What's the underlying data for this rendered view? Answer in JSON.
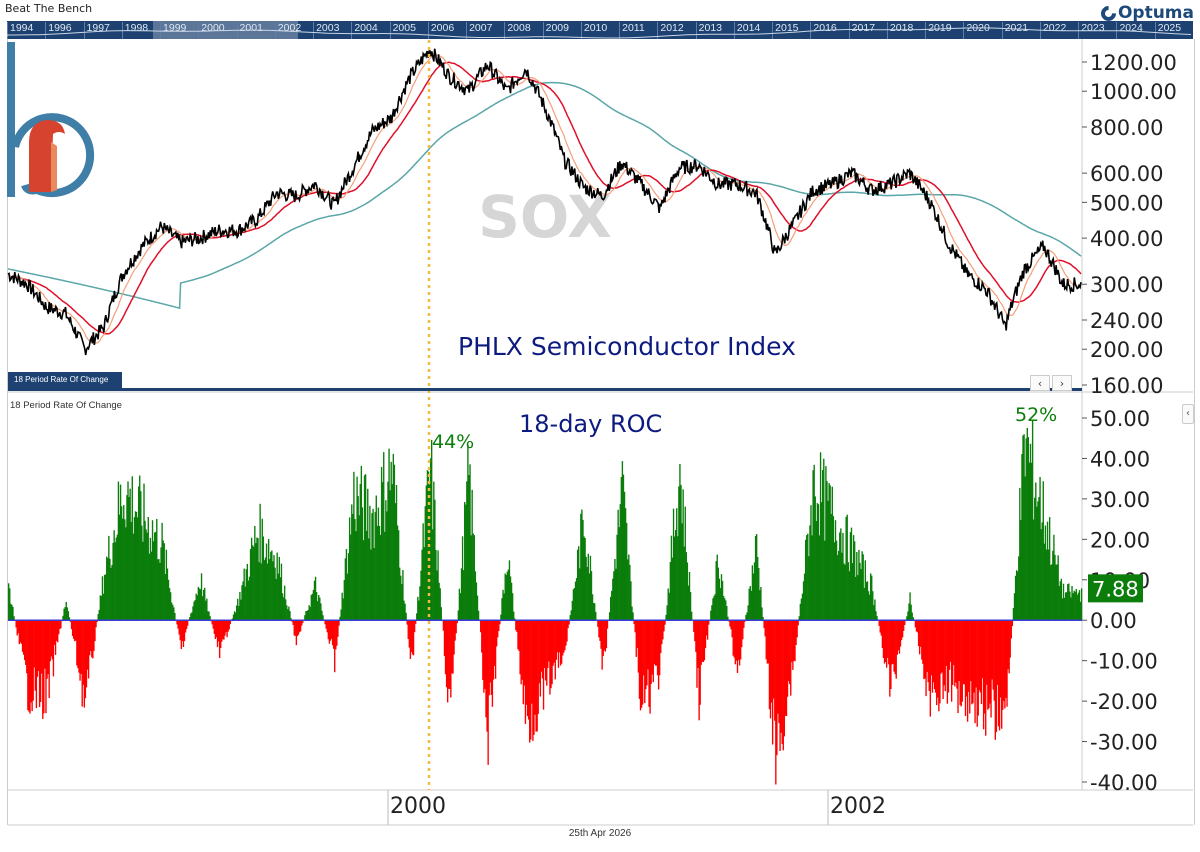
{
  "app": {
    "title": "Beat The Bench",
    "brand": "Optuma"
  },
  "navigator": {
    "years": [
      "1994",
      "1996",
      "1997",
      "1998",
      "1999",
      "2000",
      "2001",
      "2002",
      "2003",
      "2004",
      "2005",
      "2006",
      "2007",
      "2008",
      "2009",
      "2010",
      "2011",
      "2012",
      "2013",
      "2014",
      "2015",
      "2016",
      "2017",
      "2018",
      "2019",
      "2020",
      "2021",
      "2022",
      "2023",
      "2024",
      "2025"
    ]
  },
  "price_panel": {
    "watermark": "SOX",
    "annotation": "PHLX Semiconductor Index",
    "tab_label": "18 Period Rate Of Change",
    "nav_prev": "‹",
    "nav_next": "›"
  },
  "roc_panel": {
    "label": "18 Period Rate Of Change",
    "title": "18-day ROC",
    "peak_label_1": "44%",
    "peak_label_2": "52%",
    "current_value": "7.88",
    "collapse": "‹"
  },
  "footer": {
    "date": "25th Apr 2026"
  },
  "colors": {
    "price": "#000000",
    "ma_fast": "#f4a07a",
    "ma_mid": "#e0102a",
    "ma_slow": "#5aa6a8",
    "roc_pos": "#0a7d0a",
    "roc_neg": "#ff0000",
    "zero_line": "#3b3bd6",
    "navy": "#1d4272",
    "marker": "#f5b942",
    "annotation": "#0d1a80"
  },
  "chart_data": [
    {
      "type": "line",
      "title": "PHLX Semiconductor Index (SOX)",
      "scale": "log",
      "ylim": [
        160,
        1400
      ],
      "y_ticks": [
        1200,
        1000,
        800,
        600,
        500,
        400,
        300,
        240,
        200,
        160
      ],
      "x_ticks": [
        "2000",
        "2002"
      ],
      "x_range": [
        "1998-05",
        "2002-12"
      ],
      "series": [
        {
          "name": "SOX close",
          "x": [
            "1998-05",
            "1998-06",
            "1998-07",
            "1998-08",
            "1998-09",
            "1998-10",
            "1998-11",
            "1998-12",
            "1999-01",
            "1999-02",
            "1999-03",
            "1999-04",
            "1999-05",
            "1999-06",
            "1999-07",
            "1999-08",
            "1999-09",
            "1999-10",
            "1999-11",
            "1999-12",
            "2000-01",
            "2000-02",
            "2000-03",
            "2000-04",
            "2000-05",
            "2000-06",
            "2000-07",
            "2000-08",
            "2000-09",
            "2000-10",
            "2000-11",
            "2000-12",
            "2001-01",
            "2001-02",
            "2001-03",
            "2001-04",
            "2001-05",
            "2001-06",
            "2001-07",
            "2001-08",
            "2001-09",
            "2001-10",
            "2001-11",
            "2001-12",
            "2002-01",
            "2002-02",
            "2002-03",
            "2002-04",
            "2002-05",
            "2002-06",
            "2002-07",
            "2002-08",
            "2002-09",
            "2002-10",
            "2002-11",
            "2002-12"
          ],
          "values": [
            320,
            300,
            260,
            250,
            200,
            230,
            320,
            380,
            430,
            390,
            400,
            420,
            420,
            450,
            530,
            520,
            560,
            490,
            620,
            780,
            850,
            1100,
            1300,
            1100,
            1000,
            1180,
            1000,
            1150,
            900,
            650,
            550,
            520,
            640,
            560,
            480,
            620,
            630,
            560,
            560,
            530,
            360,
            440,
            540,
            560,
            600,
            540,
            560,
            600,
            510,
            390,
            320,
            290,
            230,
            330,
            380,
            300
          ]
        },
        {
          "name": "Fast MA",
          "note": "orange, tracks price closely"
        },
        {
          "name": "Mid MA",
          "note": "red, smoother"
        },
        {
          "name": "Slow MA",
          "note": "teal, long-term; peak ~1050 mid-2000"
        }
      ],
      "annotations": [
        {
          "text": "PHLX Semiconductor Index"
        },
        {
          "text": "SOX",
          "type": "watermark"
        },
        {
          "type": "vline",
          "x": "2000-03",
          "style": "dotted orange"
        }
      ]
    },
    {
      "type": "bar",
      "title": "18-day ROC",
      "ylabel": "18 Period Rate Of Change",
      "ylim": [
        -40,
        55
      ],
      "y_ticks": [
        50,
        40,
        30,
        20,
        10,
        0,
        -10,
        -20,
        -30,
        -40
      ],
      "last_value": 7.88,
      "annotations": [
        {
          "text": "44%",
          "x": "2000-03",
          "value": 44
        },
        {
          "text": "52%",
          "x": "2002-10",
          "value": 52
        }
      ],
      "categories": [
        "1998-05",
        "1998-06",
        "1998-07",
        "1998-08",
        "1998-09",
        "1998-10",
        "1998-11",
        "1998-12",
        "1999-01",
        "1999-02",
        "1999-03",
        "1999-04",
        "1999-05",
        "1999-06",
        "1999-07",
        "1999-08",
        "1999-09",
        "1999-10",
        "1999-11",
        "1999-12",
        "2000-01",
        "2000-02",
        "2000-03",
        "2000-04",
        "2000-05",
        "2000-06",
        "2000-07",
        "2000-08",
        "2000-09",
        "2000-10",
        "2000-11",
        "2000-12",
        "2001-01",
        "2001-02",
        "2001-03",
        "2001-04",
        "2001-05",
        "2001-06",
        "2001-07",
        "2001-08",
        "2001-09",
        "2001-10",
        "2001-11",
        "2001-12",
        "2002-01",
        "2002-02",
        "2002-03",
        "2002-04",
        "2002-05",
        "2002-06",
        "2002-07",
        "2002-08",
        "2002-09",
        "2002-10",
        "2002-11",
        "2002-12"
      ],
      "values": [
        10,
        -20,
        -22,
        6,
        -24,
        14,
        38,
        30,
        22,
        -8,
        12,
        -10,
        6,
        26,
        18,
        -6,
        10,
        -12,
        36,
        30,
        44,
        -14,
        44,
        -28,
        42,
        -34,
        20,
        -30,
        -20,
        -10,
        30,
        -15,
        38,
        -26,
        -14,
        44,
        -22,
        18,
        -15,
        22,
        -40,
        -10,
        40,
        30,
        20,
        10,
        -20,
        6,
        -22,
        -18,
        -22,
        -25,
        -28,
        52,
        30,
        8
      ]
    }
  ]
}
